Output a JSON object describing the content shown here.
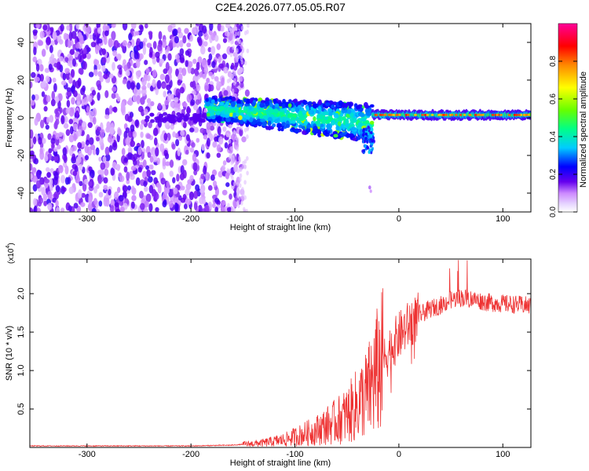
{
  "title": "C2E4.2026.077.05.05.R07",
  "chart_data": [
    {
      "type": "heatmap",
      "xlabel": "Height of straight line (km)",
      "ylabel": "Frequency (Hz)",
      "xlim": [
        -355,
        127
      ],
      "ylim": [
        -50,
        50
      ],
      "xticks": [
        -300,
        -200,
        -100,
        0,
        100
      ],
      "xtick_labels": [
        "-300",
        "-200",
        "-100",
        "0",
        "100"
      ],
      "yticks": [
        -40,
        -20,
        0,
        20,
        40
      ],
      "ytick_labels": [
        "-40",
        "-20",
        "0",
        "20",
        "40"
      ],
      "colorbar": {
        "label": "Normalized spectral amplitude",
        "range": [
          0,
          1
        ],
        "ticks": [
          0.0,
          0.2,
          0.4,
          0.6,
          0.8
        ],
        "tick_labels": [
          "0.0",
          "0.2",
          "0.4",
          "0.6",
          "0.8"
        ],
        "colors": [
          "#ffffff",
          "#cc88ff",
          "#6600ee",
          "#0000ff",
          "#00ccff",
          "#00ff66",
          "#aaff00",
          "#ffff00",
          "#ff8800",
          "#ff0000",
          "#ff0099"
        ]
      },
      "description_regions": [
        {
          "x_range": [
            -355,
            -150
          ],
          "freq_range": [
            -50,
            50
          ],
          "level": 0.1
        },
        {
          "x_range": [
            -185,
            -25
          ],
          "freq_center_start": 5,
          "freq_center_end": -3,
          "level": 0.45
        },
        {
          "x_range": [
            -25,
            127
          ],
          "freq_center": 1.5,
          "level": 0.8
        }
      ]
    },
    {
      "type": "line",
      "xlabel": "Height of straight line (km)",
      "ylabel": "SNR (10 * v/v)",
      "y_scale_label": "(x10",
      "y_scale_exp": "4",
      "y_scale_close": ")",
      "xlim": [
        -355,
        127
      ],
      "ylim": [
        0,
        2.45
      ],
      "xticks": [
        -300,
        -200,
        -100,
        0,
        100
      ],
      "xtick_labels": [
        "-300",
        "-200",
        "-100",
        "0",
        "100"
      ],
      "yticks": [
        0.5,
        1.0,
        1.5,
        2.0
      ],
      "ytick_labels": [
        "0.5",
        "1.0",
        "1.5",
        "2.0"
      ],
      "color": "#ee3333",
      "series": [
        {
          "name": "SNR",
          "x": [
            -355,
            -300,
            -250,
            -200,
            -160,
            -130,
            -110,
            -100,
            -90,
            -80,
            -70,
            -60,
            -50,
            -40,
            -30,
            -25,
            -20,
            -15,
            -10,
            0,
            10,
            20,
            30,
            40,
            50,
            60,
            70,
            80,
            90,
            100,
            110,
            120,
            127
          ],
          "y": [
            0.02,
            0.02,
            0.02,
            0.02,
            0.03,
            0.06,
            0.1,
            0.14,
            0.18,
            0.22,
            0.28,
            0.34,
            0.42,
            0.55,
            0.7,
            0.85,
            1.0,
            1.12,
            1.25,
            1.45,
            1.6,
            1.72,
            1.8,
            1.85,
            1.92,
            1.95,
            1.93,
            1.9,
            1.88,
            1.87,
            1.86,
            1.85,
            1.84
          ]
        }
      ]
    }
  ]
}
